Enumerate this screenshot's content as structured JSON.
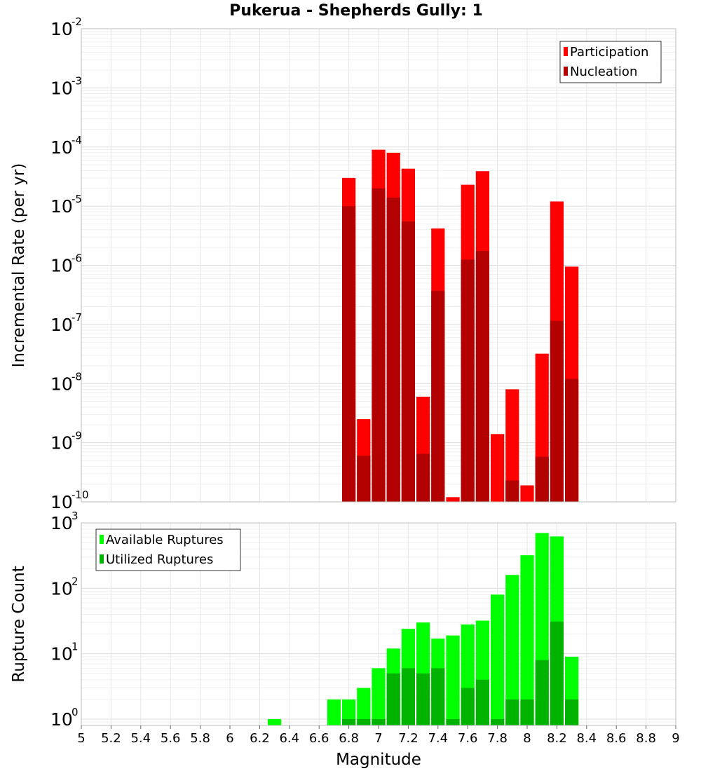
{
  "chart_data": {
    "title": "Pukerua - Shepherds Gully: 1",
    "xlabel": "Magnitude",
    "x_ticks": [
      "5",
      "5.2",
      "5.4",
      "5.6",
      "5.8",
      "6",
      "6.2",
      "6.4",
      "6.6",
      "6.8",
      "7",
      "7.2",
      "7.4",
      "7.6",
      "7.8",
      "8",
      "8.2",
      "8.4",
      "8.6",
      "8.8",
      "9"
    ],
    "xlim": [
      5,
      9
    ],
    "bin_width": 0.1,
    "panels": [
      {
        "type": "bar",
        "ylabel": "Incremental Rate (per yr)",
        "y_scale": "log",
        "ylim": [
          1e-10,
          0.01
        ],
        "y_tick_exponents": [
          "-10",
          "-9",
          "-8",
          "-7",
          "-6",
          "-5",
          "-4",
          "-3",
          "-2"
        ],
        "grid": true,
        "legend_position": "top-right",
        "x": [
          6.8,
          6.9,
          7.0,
          7.1,
          7.2,
          7.3,
          7.4,
          7.5,
          7.6,
          7.7,
          7.8,
          7.9,
          8.0,
          8.1,
          8.2,
          8.3
        ],
        "series": [
          {
            "name": "Participation",
            "color": "#ff0000",
            "values": [
              3e-05,
              2.5e-09,
              9e-05,
              8e-05,
              4.3e-05,
              6e-09,
              4.2e-06,
              1.2e-10,
              2.3e-05,
              3.9e-05,
              1.4e-09,
              8e-09,
              1.9e-10,
              3.2e-08,
              1.2e-05,
              9.5e-07
            ]
          },
          {
            "name": "Nucleation",
            "color": "#b30000",
            "values": [
              1e-05,
              6e-10,
              2e-05,
              1.4e-05,
              5.5e-06,
              6.5e-10,
              3.7e-07,
              null,
              1.25e-06,
              1.75e-06,
              null,
              2.3e-10,
              null,
              5.8e-10,
              1.15e-07,
              1.2e-08
            ]
          }
        ]
      },
      {
        "type": "bar",
        "ylabel": "Rupture Count",
        "y_scale": "log",
        "ylim": [
          0.8,
          1000
        ],
        "y_tick_exponents": [
          "0",
          "1",
          "2",
          "3"
        ],
        "grid": true,
        "legend_position": "top-left",
        "x": [
          6.3,
          6.7,
          6.8,
          6.9,
          7.0,
          7.1,
          7.2,
          7.3,
          7.4,
          7.5,
          7.6,
          7.7,
          7.8,
          7.9,
          8.0,
          8.1,
          8.2,
          8.3
        ],
        "series": [
          {
            "name": "Available Ruptures",
            "color": "#00ff00",
            "values": [
              1,
              2,
              2,
              3,
              6,
              12,
              24,
              30,
              17,
              19,
              28,
              32,
              80,
              160,
              320,
              700,
              620,
              9
            ]
          },
          {
            "name": "Utilized Ruptures",
            "color": "#00b300",
            "values": [
              null,
              null,
              1,
              1,
              1,
              5,
              6,
              5,
              6,
              1,
              3,
              4,
              1,
              2,
              2,
              8,
              31,
              2
            ]
          }
        ]
      }
    ]
  }
}
